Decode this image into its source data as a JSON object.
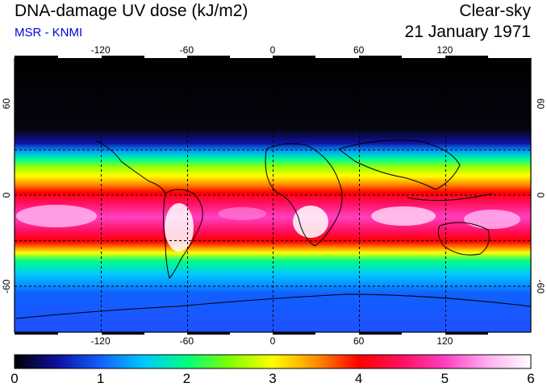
{
  "header": {
    "title": "DNA-damage UV dose (kJ/m2)",
    "subtitle": "MSR - KNMI",
    "sky": "Clear-sky",
    "date": "21 January 1971"
  },
  "colors": {
    "subtitle": "#0000dd",
    "grid": "#000000",
    "frame": "#000000"
  },
  "map": {
    "lon_ticks": [
      "-120",
      "-60",
      "0",
      "60",
      "120"
    ],
    "lat_ticks": [
      "60",
      "0",
      "-60"
    ],
    "lon_range": [
      -180,
      180
    ],
    "lat_range": [
      -90,
      90
    ]
  },
  "colorbar": {
    "min": 0,
    "max": 6,
    "labels": [
      "0",
      "1",
      "2",
      "3",
      "4",
      "5",
      "6"
    ],
    "colors": [
      "#000000",
      "#1010a0",
      "#1060ff",
      "#00c8ff",
      "#00ff80",
      "#80ff00",
      "#ffff00",
      "#ff9000",
      "#ff0000",
      "#ff1060",
      "#ff40c0",
      "#ffb0f0",
      "#ffffff"
    ]
  }
}
